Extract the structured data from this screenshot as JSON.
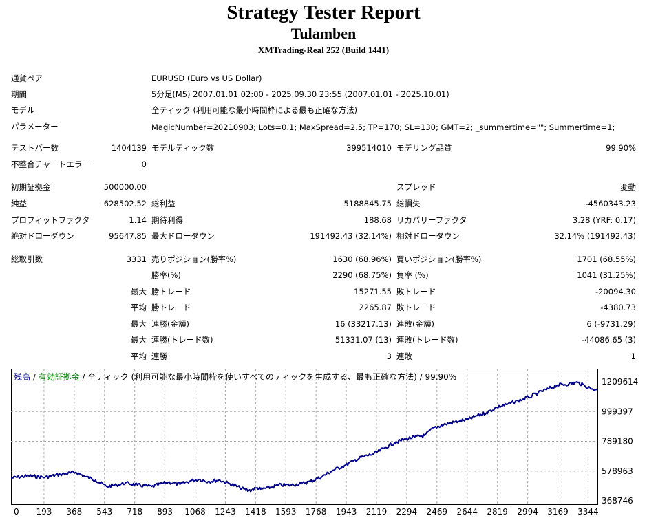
{
  "header": {
    "title": "Strategy Tester Report",
    "subtitle": "Tulamben",
    "build": "XMTrading-Real 252 (Build 1441)"
  },
  "info": {
    "symbol_label": "通貨ペア",
    "symbol_value": "EURUSD (Euro vs US Dollar)",
    "period_label": "期間",
    "period_value": "5分足(M5) 2007.01.01 02:00 - 2025.09.30 23:55 (2007.01.01 - 2025.10.01)",
    "model_label": "モデル",
    "model_value": "全ティック (利用可能な最小時間枠による最も正確な方法)",
    "params_label": "パラメーター",
    "params_value": "MagicNumber=20210903; Lots=0.1; MaxSpread=2.5; TP=170; SL=130; GMT=2; _summertime=\"\"; Summertime=1;"
  },
  "stats": {
    "bars_label": "テストバー数",
    "bars_value": "1404139",
    "ticks_label": "モデルティック数",
    "ticks_value": "399514010",
    "quality_label": "モデリング品質",
    "quality_value": "99.90%",
    "mismatch_label": "不整合チャートエラー",
    "mismatch_value": "0",
    "deposit_label": "初期証拠金",
    "deposit_value": "500000.00",
    "spread_label": "スプレッド",
    "spread_value": "変動",
    "net_label": "純益",
    "net_value": "628502.52",
    "gross_profit_label": "総利益",
    "gross_profit_value": "5188845.75",
    "gross_loss_label": "総損失",
    "gross_loss_value": "-4560343.23",
    "pf_label": "プロフィットファクタ",
    "pf_value": "1.14",
    "expected_label": "期待利得",
    "expected_value": "188.68",
    "recovery_label": "リカバリーファクタ",
    "recovery_value": "3.28 (YRF: 0.17)",
    "abs_dd_label": "絶対ドローダウン",
    "abs_dd_value": "95647.85",
    "max_dd_label": "最大ドローダウン",
    "max_dd_value": "191492.43 (32.14%)",
    "rel_dd_label": "相対ドローダウン",
    "rel_dd_value": "32.14% (191492.43)",
    "trades_label": "総取引数",
    "trades_value": "3331",
    "short_label": "売りポジション(勝率%)",
    "short_value": "1630 (68.96%)",
    "long_label": "買いポジション(勝率%)",
    "long_value": "1701 (68.55%)",
    "winrate_label": "勝率(%)",
    "winrate_value": "2290 (68.75%)",
    "lossrate_label": "負率 (%)",
    "lossrate_value": "1041 (31.25%)",
    "max_label": "最大",
    "avg_label": "平均",
    "win_trade_label": "勝トレード",
    "loss_trade_label": "敗トレード",
    "max_win_value": "15271.55",
    "max_loss_value": "-20094.30",
    "avg_win_value": "2265.87",
    "avg_loss_value": "-4380.73",
    "cw_amount_label": "連勝(金額)",
    "cw_amount_value": "16 (33217.13)",
    "cl_amount_label": "連敗(金額)",
    "cl_amount_value": "6 (-9731.29)",
    "cw_trades_label": "連勝(トレード数)",
    "cw_trades_value": "51331.07 (13)",
    "cl_trades_label": "連敗(トレード数)",
    "cl_trades_value": "-44086.65 (3)",
    "avg_cw_label": "連勝",
    "avg_cw_value": "3",
    "avg_cl_label": "連敗",
    "avg_cl_value": "1"
  },
  "chart_data": {
    "type": "line",
    "legend": {
      "balance": "残高",
      "sep1": " / ",
      "margin": "有効証拠金",
      "rest": " / 全ティック (利用可能な最小時間枠を使いすべてのティックを生成する、最も正確な方法) / 99.90%"
    },
    "colors": {
      "balance": "#00008B",
      "margin": "#008000",
      "grid": "#A9A9A9"
    },
    "ylim": [
      368746,
      1209614
    ],
    "yticks": [
      "1209614",
      "999397",
      "789180",
      "578963",
      "368746"
    ],
    "xlim": [
      0,
      3331
    ],
    "xticks": [
      "0",
      "193",
      "368",
      "543",
      "718",
      "893",
      "1068",
      "1243",
      "1418",
      "1593",
      "1768",
      "1943",
      "2119",
      "2294",
      "2469",
      "2644",
      "2819",
      "2994",
      "3169",
      "3344"
    ],
    "series": [
      {
        "x": [
          0,
          100,
          193,
          280,
          368,
          420,
          480,
          543,
          600,
          650,
          718,
          800,
          893,
          960,
          1020,
          1068,
          1120,
          1180,
          1243,
          1300,
          1350,
          1400,
          1418,
          1480,
          1520,
          1593,
          1650,
          1700,
          1768,
          1830,
          1900,
          1943,
          2000,
          2060,
          2119,
          2180,
          2240,
          2294,
          2350,
          2400,
          2469,
          2540,
          2600,
          2644,
          2700,
          2760,
          2819,
          2880,
          2940,
          2994,
          3050,
          3100,
          3169,
          3220,
          3260,
          3300,
          3331
        ],
        "values": [
          530000,
          545000,
          535000,
          555000,
          570000,
          540000,
          515000,
          470000,
          480000,
          495000,
          480000,
          470000,
          500000,
          485000,
          510000,
          520000,
          505000,
          515000,
          490000,
          460000,
          440000,
          460000,
          450000,
          465000,
          480000,
          480000,
          490000,
          505000,
          540000,
          585000,
          620000,
          650000,
          680000,
          700000,
          740000,
          780000,
          805000,
          820000,
          830000,
          885000,
          910000,
          930000,
          945000,
          970000,
          990000,
          1030000,
          1050000,
          1075000,
          1100000,
          1130000,
          1160000,
          1185000,
          1195000,
          1205000,
          1180000,
          1160000,
          1150000
        ]
      }
    ]
  }
}
